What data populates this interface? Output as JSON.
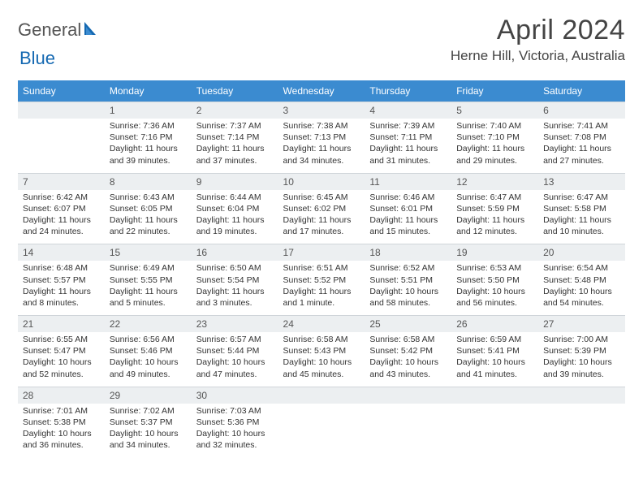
{
  "logo": {
    "word1": "General",
    "word2": "Blue"
  },
  "title": "April 2024",
  "location": "Herne Hill, Victoria, Australia",
  "header_bg": "#3b8bd0",
  "daynum_bg": "#eceff1",
  "border_color": "#d0d5da",
  "weekdays": [
    "Sunday",
    "Monday",
    "Tuesday",
    "Wednesday",
    "Thursday",
    "Friday",
    "Saturday"
  ],
  "weeks": [
    [
      {
        "n": "",
        "sunrise": "",
        "sunset": "",
        "daylight": ""
      },
      {
        "n": "1",
        "sunrise": "Sunrise: 7:36 AM",
        "sunset": "Sunset: 7:16 PM",
        "daylight": "Daylight: 11 hours and 39 minutes."
      },
      {
        "n": "2",
        "sunrise": "Sunrise: 7:37 AM",
        "sunset": "Sunset: 7:14 PM",
        "daylight": "Daylight: 11 hours and 37 minutes."
      },
      {
        "n": "3",
        "sunrise": "Sunrise: 7:38 AM",
        "sunset": "Sunset: 7:13 PM",
        "daylight": "Daylight: 11 hours and 34 minutes."
      },
      {
        "n": "4",
        "sunrise": "Sunrise: 7:39 AM",
        "sunset": "Sunset: 7:11 PM",
        "daylight": "Daylight: 11 hours and 31 minutes."
      },
      {
        "n": "5",
        "sunrise": "Sunrise: 7:40 AM",
        "sunset": "Sunset: 7:10 PM",
        "daylight": "Daylight: 11 hours and 29 minutes."
      },
      {
        "n": "6",
        "sunrise": "Sunrise: 7:41 AM",
        "sunset": "Sunset: 7:08 PM",
        "daylight": "Daylight: 11 hours and 27 minutes."
      }
    ],
    [
      {
        "n": "7",
        "sunrise": "Sunrise: 6:42 AM",
        "sunset": "Sunset: 6:07 PM",
        "daylight": "Daylight: 11 hours and 24 minutes."
      },
      {
        "n": "8",
        "sunrise": "Sunrise: 6:43 AM",
        "sunset": "Sunset: 6:05 PM",
        "daylight": "Daylight: 11 hours and 22 minutes."
      },
      {
        "n": "9",
        "sunrise": "Sunrise: 6:44 AM",
        "sunset": "Sunset: 6:04 PM",
        "daylight": "Daylight: 11 hours and 19 minutes."
      },
      {
        "n": "10",
        "sunrise": "Sunrise: 6:45 AM",
        "sunset": "Sunset: 6:02 PM",
        "daylight": "Daylight: 11 hours and 17 minutes."
      },
      {
        "n": "11",
        "sunrise": "Sunrise: 6:46 AM",
        "sunset": "Sunset: 6:01 PM",
        "daylight": "Daylight: 11 hours and 15 minutes."
      },
      {
        "n": "12",
        "sunrise": "Sunrise: 6:47 AM",
        "sunset": "Sunset: 5:59 PM",
        "daylight": "Daylight: 11 hours and 12 minutes."
      },
      {
        "n": "13",
        "sunrise": "Sunrise: 6:47 AM",
        "sunset": "Sunset: 5:58 PM",
        "daylight": "Daylight: 11 hours and 10 minutes."
      }
    ],
    [
      {
        "n": "14",
        "sunrise": "Sunrise: 6:48 AM",
        "sunset": "Sunset: 5:57 PM",
        "daylight": "Daylight: 11 hours and 8 minutes."
      },
      {
        "n": "15",
        "sunrise": "Sunrise: 6:49 AM",
        "sunset": "Sunset: 5:55 PM",
        "daylight": "Daylight: 11 hours and 5 minutes."
      },
      {
        "n": "16",
        "sunrise": "Sunrise: 6:50 AM",
        "sunset": "Sunset: 5:54 PM",
        "daylight": "Daylight: 11 hours and 3 minutes."
      },
      {
        "n": "17",
        "sunrise": "Sunrise: 6:51 AM",
        "sunset": "Sunset: 5:52 PM",
        "daylight": "Daylight: 11 hours and 1 minute."
      },
      {
        "n": "18",
        "sunrise": "Sunrise: 6:52 AM",
        "sunset": "Sunset: 5:51 PM",
        "daylight": "Daylight: 10 hours and 58 minutes."
      },
      {
        "n": "19",
        "sunrise": "Sunrise: 6:53 AM",
        "sunset": "Sunset: 5:50 PM",
        "daylight": "Daylight: 10 hours and 56 minutes."
      },
      {
        "n": "20",
        "sunrise": "Sunrise: 6:54 AM",
        "sunset": "Sunset: 5:48 PM",
        "daylight": "Daylight: 10 hours and 54 minutes."
      }
    ],
    [
      {
        "n": "21",
        "sunrise": "Sunrise: 6:55 AM",
        "sunset": "Sunset: 5:47 PM",
        "daylight": "Daylight: 10 hours and 52 minutes."
      },
      {
        "n": "22",
        "sunrise": "Sunrise: 6:56 AM",
        "sunset": "Sunset: 5:46 PM",
        "daylight": "Daylight: 10 hours and 49 minutes."
      },
      {
        "n": "23",
        "sunrise": "Sunrise: 6:57 AM",
        "sunset": "Sunset: 5:44 PM",
        "daylight": "Daylight: 10 hours and 47 minutes."
      },
      {
        "n": "24",
        "sunrise": "Sunrise: 6:58 AM",
        "sunset": "Sunset: 5:43 PM",
        "daylight": "Daylight: 10 hours and 45 minutes."
      },
      {
        "n": "25",
        "sunrise": "Sunrise: 6:58 AM",
        "sunset": "Sunset: 5:42 PM",
        "daylight": "Daylight: 10 hours and 43 minutes."
      },
      {
        "n": "26",
        "sunrise": "Sunrise: 6:59 AM",
        "sunset": "Sunset: 5:41 PM",
        "daylight": "Daylight: 10 hours and 41 minutes."
      },
      {
        "n": "27",
        "sunrise": "Sunrise: 7:00 AM",
        "sunset": "Sunset: 5:39 PM",
        "daylight": "Daylight: 10 hours and 39 minutes."
      }
    ],
    [
      {
        "n": "28",
        "sunrise": "Sunrise: 7:01 AM",
        "sunset": "Sunset: 5:38 PM",
        "daylight": "Daylight: 10 hours and 36 minutes."
      },
      {
        "n": "29",
        "sunrise": "Sunrise: 7:02 AM",
        "sunset": "Sunset: 5:37 PM",
        "daylight": "Daylight: 10 hours and 34 minutes."
      },
      {
        "n": "30",
        "sunrise": "Sunrise: 7:03 AM",
        "sunset": "Sunset: 5:36 PM",
        "daylight": "Daylight: 10 hours and 32 minutes."
      },
      {
        "n": "",
        "sunrise": "",
        "sunset": "",
        "daylight": ""
      },
      {
        "n": "",
        "sunrise": "",
        "sunset": "",
        "daylight": ""
      },
      {
        "n": "",
        "sunrise": "",
        "sunset": "",
        "daylight": ""
      },
      {
        "n": "",
        "sunrise": "",
        "sunset": "",
        "daylight": ""
      }
    ]
  ]
}
